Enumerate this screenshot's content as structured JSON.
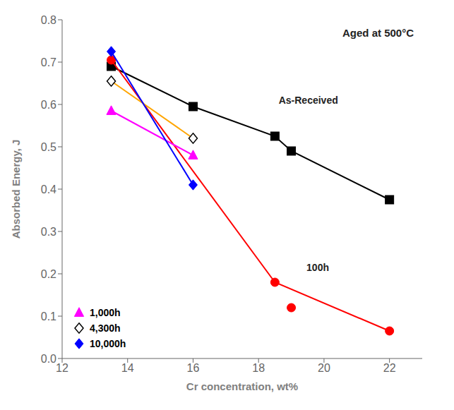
{
  "chart_data": {
    "type": "line",
    "xlabel": "Cr concentration, wt%",
    "ylabel": "Absorbed Energy, J",
    "xlim": [
      12,
      23
    ],
    "ylim": [
      0.0,
      0.8
    ],
    "xticks": [
      12,
      14,
      16,
      18,
      20,
      22
    ],
    "yticks": [
      {
        "value": 0,
        "label": "0.0"
      },
      0.1,
      0.2,
      0.3,
      0.4,
      0.5,
      0.6,
      0.7,
      0.8
    ],
    "grid": false,
    "legend": "lower left",
    "annotations": [
      {
        "text": "Aged at 500°C"
      },
      {
        "text": "As-Received",
        "x": 18.55,
        "y": 0.61
      },
      {
        "text": "100h",
        "x": 19.4,
        "y": 0.215
      }
    ],
    "series": [
      {
        "color": "black",
        "marker": "square",
        "line_style": "solid",
        "x": [
          13.5,
          16,
          18.5,
          19.0,
          22
        ],
        "values": [
          0.69,
          0.595,
          0.525,
          0.49,
          0.375
        ]
      },
      {
        "color": "red",
        "marker": "circle",
        "line_style": "solid",
        "x": [
          13.5,
          18.5,
          22
        ],
        "values": [
          0.705,
          0.18,
          0.065
        ]
      },
      {
        "color": "red",
        "marker": "circle",
        "line_style": "none",
        "x": [
          19.0
        ],
        "values": [
          0.12
        ]
      },
      {
        "name": "1,000h",
        "color": "magenta",
        "marker": "triangle",
        "line_style": "solid",
        "x": [
          13.5,
          16
        ],
        "values": [
          0.585,
          0.48
        ]
      },
      {
        "name": "4,300h",
        "color": "orange",
        "marker": "open_diamond",
        "line_style": "solid",
        "x": [
          13.5,
          16
        ],
        "values": [
          0.655,
          0.52
        ]
      },
      {
        "name": "10,000h",
        "color": "blue",
        "marker": "diamond",
        "line_style": "solid",
        "x": [
          13.5,
          16
        ],
        "values": [
          0.725,
          0.41
        ]
      }
    ]
  }
}
